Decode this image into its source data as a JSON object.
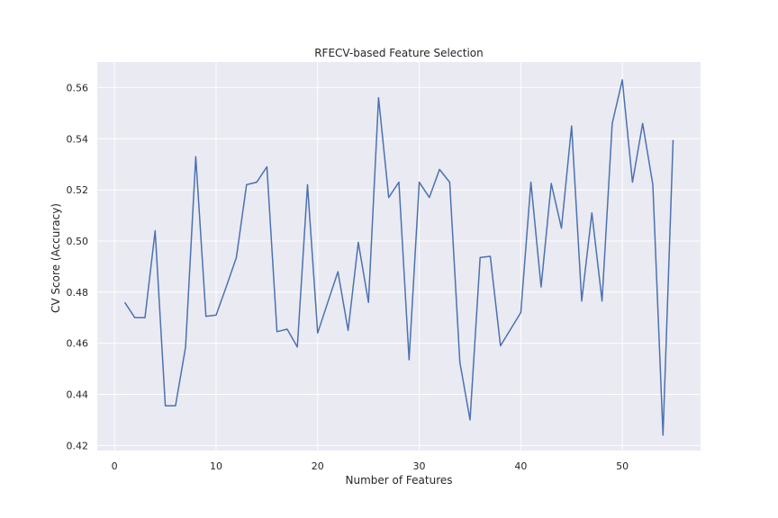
{
  "chart_data": {
    "type": "line",
    "title": "RFECV-based Feature Selection",
    "xlabel": "Number of Features",
    "ylabel": "CV Score (Accuracy)",
    "xlim": [
      -1.7,
      57.7
    ],
    "ylim": [
      0.418,
      0.57
    ],
    "xticks": [
      0,
      10,
      20,
      30,
      40,
      50
    ],
    "xtick_labels": [
      "0",
      "10",
      "20",
      "30",
      "40",
      "50"
    ],
    "yticks": [
      0.42,
      0.44,
      0.46,
      0.48,
      0.5,
      0.52,
      0.54,
      0.56
    ],
    "ytick_labels": [
      "0.42",
      "0.44",
      "0.46",
      "0.48",
      "0.50",
      "0.52",
      "0.54",
      "0.56"
    ],
    "grid": true,
    "colors": {
      "background": "#eaeaf2",
      "grid": "#ffffff",
      "line": "#4c72b0"
    },
    "series": [
      {
        "x": [
          1,
          2,
          3,
          4,
          5,
          6,
          7,
          8,
          9,
          10,
          11,
          12,
          13,
          14,
          15,
          16,
          17,
          18,
          19,
          20,
          21,
          22,
          23,
          24,
          25,
          26,
          27,
          28,
          29,
          30,
          31,
          32,
          33,
          34,
          35,
          36,
          37,
          38,
          39,
          40,
          41,
          42,
          43,
          44,
          45,
          46,
          47,
          48,
          49,
          50,
          51,
          52,
          53,
          54,
          55
        ],
        "values": [
          0.476,
          0.47,
          0.47,
          0.504,
          0.4355,
          0.4355,
          0.4585,
          0.533,
          0.4705,
          0.471,
          0.482,
          0.4935,
          0.522,
          0.523,
          0.529,
          0.4645,
          0.4655,
          0.4585,
          0.522,
          0.464,
          0.476,
          0.488,
          0.465,
          0.4995,
          0.476,
          0.556,
          0.517,
          0.523,
          0.4535,
          0.523,
          0.517,
          0.528,
          0.523,
          0.4525,
          0.43,
          0.4935,
          0.494,
          0.459,
          0.4655,
          0.472,
          0.523,
          0.482,
          0.5225,
          0.505,
          0.545,
          0.4765,
          0.511,
          0.4765,
          0.546,
          0.563,
          0.523,
          0.546,
          0.522,
          0.424,
          0.5395
        ]
      }
    ]
  }
}
